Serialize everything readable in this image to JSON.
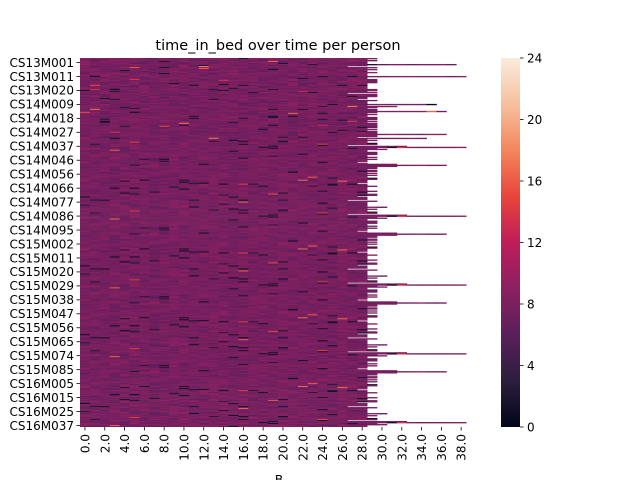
{
  "chart_data": {
    "type": "heatmap",
    "title": "time_in_bed over time per person",
    "xlabel": "B",
    "ylabel": "",
    "x_ticks": [
      "0.0",
      "2.0",
      "4.0",
      "6.0",
      "8.0",
      "10.0",
      "12.0",
      "14.0",
      "16.0",
      "18.0",
      "20.0",
      "22.0",
      "24.0",
      "26.0",
      "28.0",
      "30.0",
      "32.0",
      "34.0",
      "36.0",
      "38.0"
    ],
    "y_ticks": [
      "CS13M001",
      "CS13M011",
      "CS13M020",
      "CS14M009",
      "CS14M018",
      "CS14M027",
      "CS14M037",
      "CS14M046",
      "CS14M056",
      "CS14M066",
      "CS14M077",
      "CS14M086",
      "CS14M095",
      "CS15M002",
      "CS15M011",
      "CS15M020",
      "CS15M029",
      "CS15M038",
      "CS15M047",
      "CS15M056",
      "CS15M065",
      "CS15M074",
      "CS15M085",
      "CS16M005",
      "CS16M015",
      "CS16M025",
      "CS16M037"
    ],
    "colorbar": {
      "min": 0,
      "max": 24,
      "ticks": [
        "0",
        "4",
        "8",
        "12",
        "16",
        "20",
        "24"
      ],
      "colormap": "rocket",
      "stops": [
        "#03051a",
        "#2c1e3d",
        "#5a1f5b",
        "#8b2062",
        "#be1e59",
        "#e8443a",
        "#f3865d",
        "#f6c09e",
        "#faebdd"
      ]
    },
    "matrix_summary": {
      "rows": 370,
      "columns": 40,
      "typical_value_range": [
        6,
        10
      ],
      "note_long_rows": "most persons have about 30 nights of data; a few extend up to about 39 nights"
    }
  }
}
